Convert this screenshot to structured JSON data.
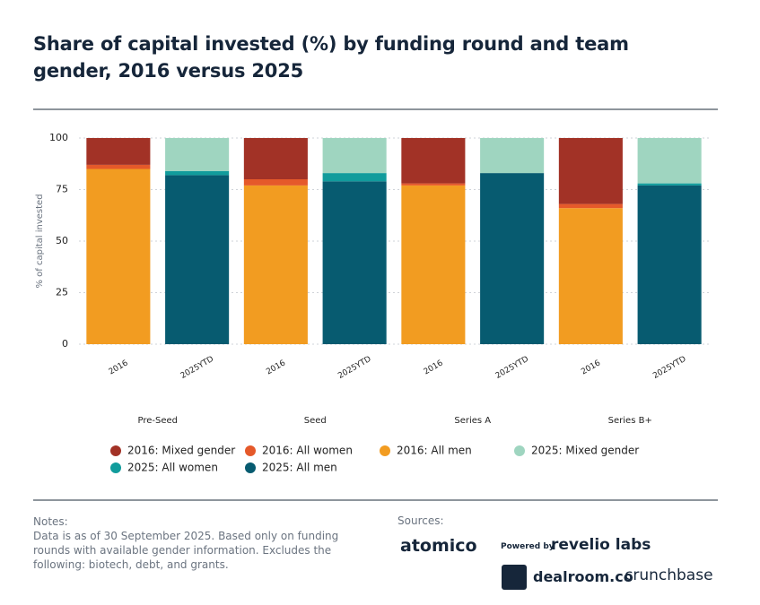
{
  "chart_data": {
    "type": "stacked-bar",
    "title": "Share of capital invested (%) by funding round and team gender, 2016 versus 2025",
    "y_label": "% of capital invested",
    "categories": [
      "2016",
      "2025YTD",
      "2016",
      "2025YTD",
      "2016",
      "2025YTD",
      "2016",
      "2025YTD"
    ],
    "groups": [
      "Pre-Seed",
      "Seed",
      "Series A",
      "Series B+"
    ],
    "series": [
      {
        "name": "2016: Mixed gender",
        "color": "#a23226",
        "values": [
          13,
          null,
          20,
          null,
          22,
          null,
          32,
          null
        ]
      },
      {
        "name": "2016: All women",
        "color": "#e5592a",
        "values": [
          2,
          null,
          3,
          null,
          1,
          null,
          2,
          null
        ]
      },
      {
        "name": "2016: All men",
        "color": "#f29c21",
        "values": [
          85,
          null,
          77,
          null,
          77,
          null,
          66,
          null
        ]
      },
      {
        "name": "2025: Mixed gender",
        "color": "#9fd5c0",
        "values": [
          null,
          16,
          null,
          17,
          null,
          17,
          null,
          22
        ]
      },
      {
        "name": "2025: All women",
        "color": "#119c9c",
        "values": [
          null,
          2,
          null,
          4,
          null,
          0,
          null,
          1
        ]
      },
      {
        "name": "2025: All men",
        "color": "#075b70",
        "values": [
          null,
          82,
          null,
          79,
          null,
          83,
          null,
          77
        ]
      }
    ],
    "ylim": [
      0,
      100
    ],
    "yticks": [
      0,
      25,
      50,
      75,
      100
    ],
    "grid": true
  },
  "notes": {
    "heading": "Notes:",
    "text": "Data is as of 30 September 2025. Based only on funding rounds with available gender information. Excludes the following: biotech, debt, and grants."
  },
  "sources": {
    "heading": "Sources:",
    "atomico": "atomico",
    "powered_by": "Powered by",
    "revelio": "revelio labs",
    "dealroom": "dealroom.co",
    "crunchbase": "crunchbase"
  }
}
